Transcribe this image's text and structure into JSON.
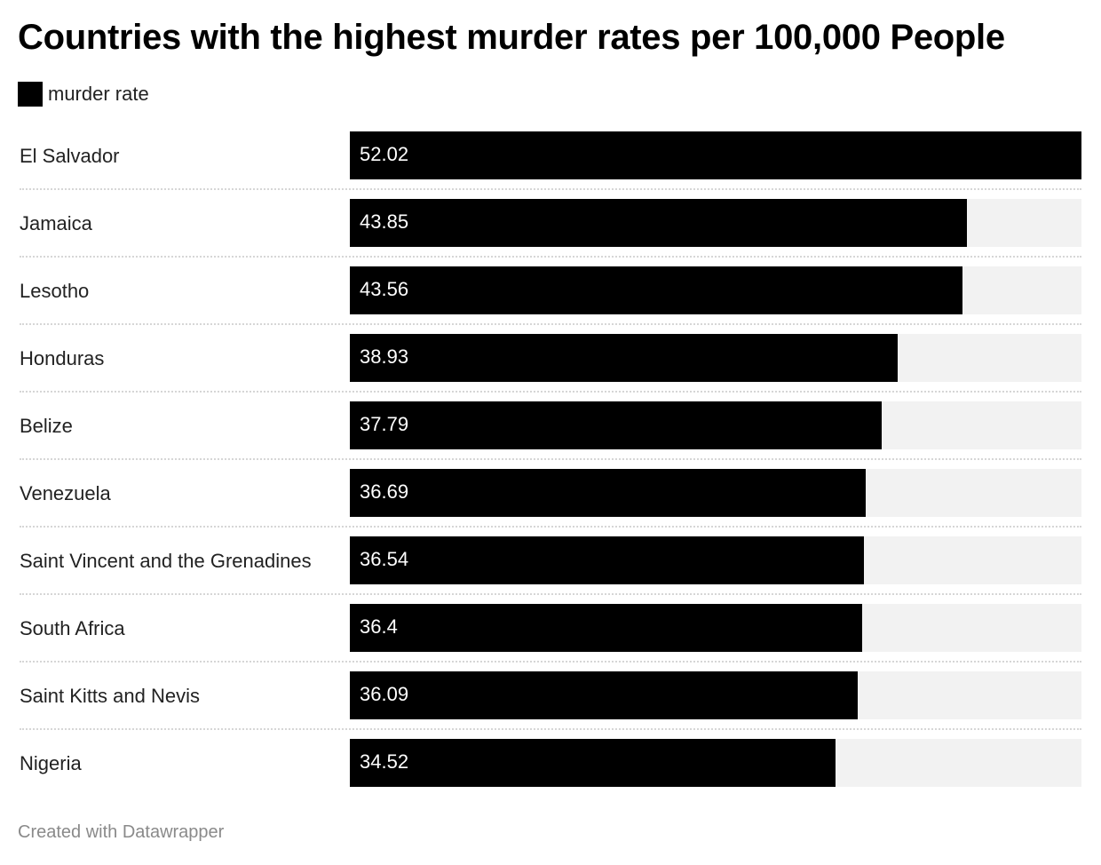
{
  "chart_data": {
    "type": "bar",
    "orientation": "horizontal",
    "title": "Countries with the highest murder rates per 100,000 People",
    "legend": {
      "label": "murder rate",
      "color": "#000000",
      "placement": "top-left"
    },
    "categories": [
      "El Salvador",
      "Jamaica",
      "Lesotho",
      "Honduras",
      "Belize",
      "Venezuela",
      "Saint Vincent and the Grenadines",
      "South Africa",
      "Saint Kitts and Nevis",
      "Nigeria"
    ],
    "values": [
      52.02,
      43.85,
      43.56,
      38.93,
      37.79,
      36.69,
      36.54,
      36.4,
      36.09,
      34.52
    ],
    "value_labels": [
      "52.02",
      "43.85",
      "43.56",
      "38.93",
      "37.79",
      "36.69",
      "36.54",
      "36.4",
      "36.09",
      "34.52"
    ],
    "xlim": [
      0,
      52.02
    ],
    "bar_color": "#000000",
    "track_color": "#f2f2f2",
    "grid": false
  },
  "footer": "Created with Datawrapper"
}
